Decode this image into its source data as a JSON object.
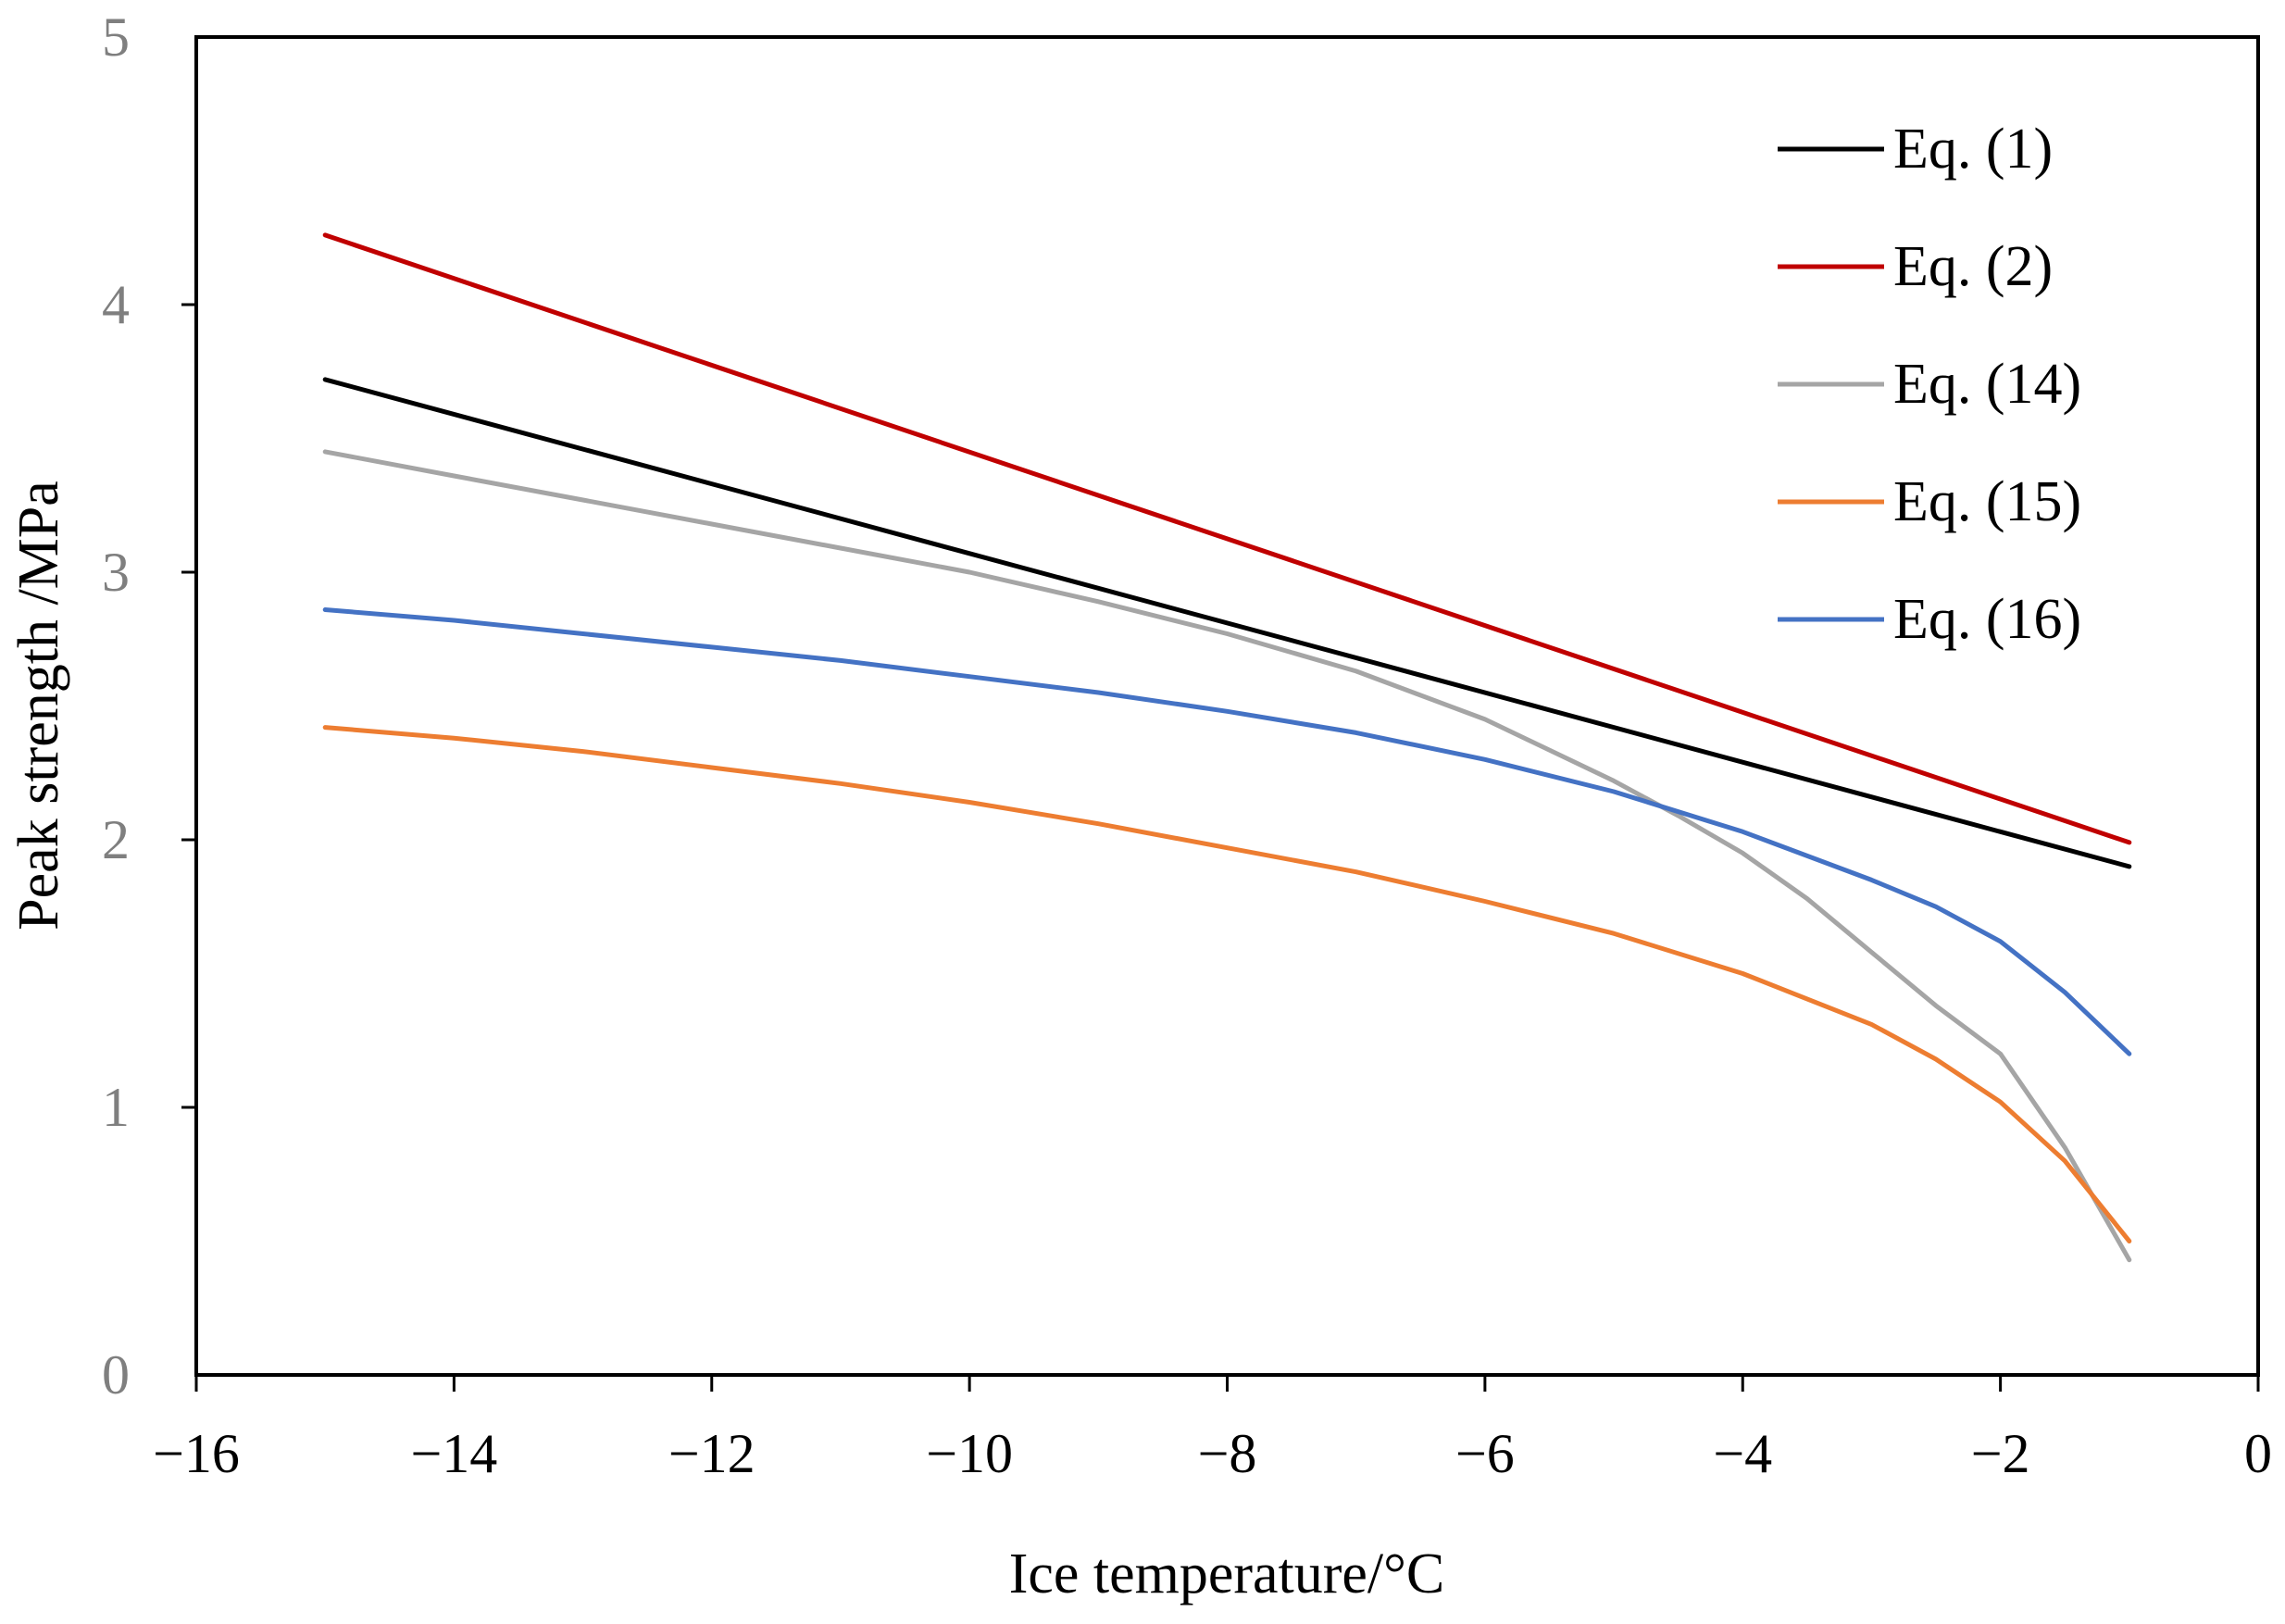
{
  "chart_data": {
    "type": "line",
    "title": "",
    "xlabel": "Ice temperature/°C",
    "ylabel": "Peak strength /MPa",
    "xlim": [
      -16,
      0
    ],
    "ylim": [
      0,
      5
    ],
    "xticks": [
      -16,
      -14,
      -12,
      -10,
      -8,
      -6,
      -4,
      -2,
      0
    ],
    "yticks": [
      0,
      1,
      2,
      3,
      4,
      5
    ],
    "xtick_labels": [
      "−16",
      "−14",
      "−12",
      "−10",
      "−8",
      "−6",
      "−4",
      "−2",
      "0"
    ],
    "ytick_labels": [
      "0",
      "1",
      "2",
      "3",
      "4",
      "5"
    ],
    "grid": false,
    "legend_position": "top-right",
    "series": [
      {
        "name": "Eq. (1)",
        "color": "#000000",
        "x": [
          -15,
          -1
        ],
        "y": [
          3.72,
          1.9
        ]
      },
      {
        "name": "Eq. (2)",
        "color": "#c00000",
        "x": [
          -15,
          -1
        ],
        "y": [
          4.26,
          1.99
        ]
      },
      {
        "name": "Eq. (14)",
        "color": "#a5a5a5",
        "x": [
          -15,
          -14,
          -13,
          -12,
          -11,
          -10,
          -9,
          -8,
          -7,
          -6,
          -5,
          -4.5,
          -4,
          -3.5,
          -3,
          -2.5,
          -2,
          -1.5,
          -1
        ],
        "y": [
          3.45,
          3.36,
          3.27,
          3.18,
          3.09,
          3.0,
          2.89,
          2.77,
          2.63,
          2.45,
          2.22,
          2.09,
          1.95,
          1.78,
          1.58,
          1.38,
          1.2,
          0.85,
          0.43
        ]
      },
      {
        "name": "Eq. (15)",
        "color": "#ed7d31",
        "x": [
          -15,
          -14,
          -13,
          -12,
          -11,
          -10,
          -9,
          -8,
          -7,
          -6,
          -5,
          -4,
          -3,
          -2.5,
          -2,
          -1.5,
          -1
        ],
        "y": [
          2.42,
          2.38,
          2.33,
          2.27,
          2.21,
          2.14,
          2.06,
          1.97,
          1.88,
          1.77,
          1.65,
          1.5,
          1.31,
          1.18,
          1.02,
          0.8,
          0.5
        ]
      },
      {
        "name": "Eq. (16)",
        "color": "#4472c4",
        "x": [
          -15,
          -14,
          -13,
          -12,
          -11,
          -10,
          -9,
          -8,
          -7,
          -6,
          -5,
          -4,
          -3,
          -2.5,
          -2,
          -1.5,
          -1
        ],
        "y": [
          2.86,
          2.82,
          2.77,
          2.72,
          2.67,
          2.61,
          2.55,
          2.48,
          2.4,
          2.3,
          2.18,
          2.03,
          1.85,
          1.75,
          1.62,
          1.43,
          1.2
        ]
      }
    ]
  }
}
